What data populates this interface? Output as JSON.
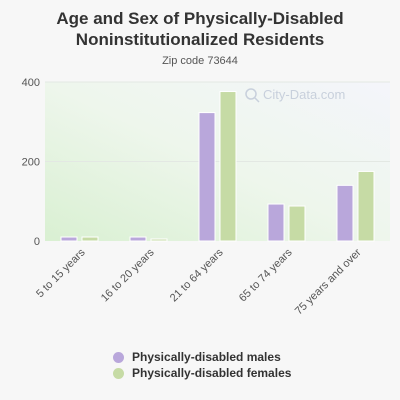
{
  "chart_data": {
    "type": "bar",
    "title_lines": [
      "Age and Sex of Physically-Disabled",
      "Noninstitutionalized Residents"
    ],
    "subtitle": "Zip code 73644",
    "categories": [
      "5 to 15 years",
      "16 to 20 years",
      "21 to 64 years",
      "65 to 74 years",
      "75 years and over"
    ],
    "series": [
      {
        "name": "Physically-disabled males",
        "color": "#b9a7db",
        "values": [
          10,
          10,
          323,
          93,
          140
        ]
      },
      {
        "name": "Physically-disabled females",
        "color": "#c6dba5",
        "values": [
          10,
          5,
          376,
          88,
          175
        ]
      }
    ],
    "y_ticks": [
      0,
      200,
      400
    ],
    "ylim": [
      0,
      400
    ],
    "grid": true,
    "legend_position": "bottom",
    "watermark": "City-Data.com"
  }
}
